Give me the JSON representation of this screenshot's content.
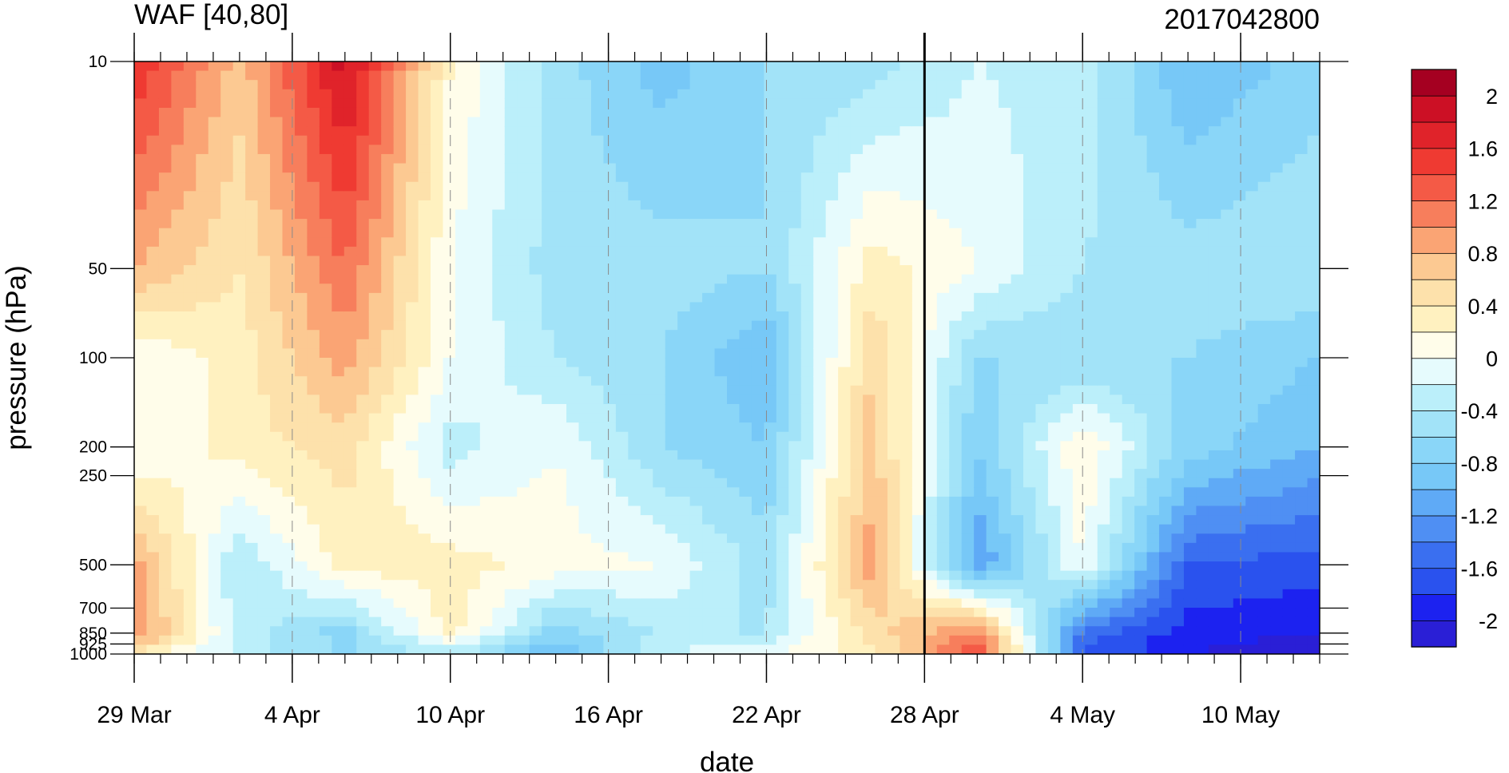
{
  "chart_data": {
    "type": "heatmap",
    "subtype": "filled-contour",
    "title": "WAF [40,80]",
    "title_right": "2017042800",
    "xlabel": "date",
    "ylabel": "pressure (hPa)",
    "y_scale": "log",
    "y_inverted": true,
    "ylim": [
      1000,
      10
    ],
    "y_ticks": [
      10,
      50,
      100,
      200,
      250,
      500,
      700,
      850,
      925,
      1000
    ],
    "y_tick_labels": [
      "10",
      "50",
      "100",
      "200",
      "250",
      "500",
      "700",
      "850",
      "925",
      "1000"
    ],
    "x_ticks": [
      "2017-03-29",
      "2017-04-04",
      "2017-04-10",
      "2017-04-16",
      "2017-04-22",
      "2017-04-28",
      "2017-05-04",
      "2017-05-10"
    ],
    "x_tick_labels": [
      "29 Mar",
      "4 Apr",
      "10 Apr",
      "16 Apr",
      "22 Apr",
      "28 Apr",
      "4 May",
      "10 May"
    ],
    "xlim": [
      "2017-03-29",
      "2017-05-13"
    ],
    "vertical_marker": "2017-04-28",
    "grid": "dashed vertical lines at date ticks",
    "colorbar": {
      "levels": [
        -2.2,
        -2.0,
        -1.8,
        -1.6,
        -1.4,
        -1.2,
        -1.0,
        -0.8,
        -0.6,
        -0.4,
        -0.2,
        0,
        0.2,
        0.4,
        0.6,
        0.8,
        1.0,
        1.2,
        1.4,
        1.6,
        1.8,
        2.0,
        2.2
      ],
      "labels": [
        "2",
        "1.6",
        "1.2",
        "0.8",
        "0.4",
        "0",
        "-0.4",
        "-0.8",
        "-1.2",
        "-1.6",
        "-2"
      ],
      "colors": [
        "#2a1fd6",
        "#1c22f0",
        "#2a52ee",
        "#3a6ff0",
        "#4f8ff3",
        "#5faaf6",
        "#77c8f7",
        "#8ad6f8",
        "#a2e3f8",
        "#bbeffa",
        "#e6fbfd",
        "#fffdea",
        "#fff1c0",
        "#fde1ab",
        "#fcc992",
        "#faa474",
        "#f77e5c",
        "#f45a46",
        "#ef3a32",
        "#e0232a",
        "#cc1025",
        "#a50021"
      ],
      "placement": "right"
    },
    "field": {
      "dates": [
        "2017-03-29",
        "2017-04-02",
        "2017-04-06",
        "2017-04-10",
        "2017-04-14",
        "2017-04-18",
        "2017-04-22",
        "2017-04-26",
        "2017-04-30",
        "2017-05-04",
        "2017-05-08",
        "2017-05-13"
      ],
      "pressures": [
        10,
        50,
        100,
        200,
        500,
        850,
        1000
      ],
      "values": [
        [
          1.6,
          0.7,
          1.9,
          0.2,
          -0.5,
          -0.9,
          -0.6,
          -0.5,
          -0.2,
          -0.3,
          -1.0,
          -0.7
        ],
        [
          0.8,
          0.4,
          1.2,
          0.0,
          -0.5,
          -0.5,
          -0.6,
          0.3,
          0.0,
          -0.4,
          -0.5,
          -0.4
        ],
        [
          0.0,
          0.3,
          0.9,
          0.0,
          -0.4,
          -0.6,
          -1.0,
          0.6,
          -0.6,
          -0.6,
          -0.6,
          -0.8
        ],
        [
          0.0,
          0.3,
          0.5,
          -0.3,
          0.0,
          -0.6,
          -0.8,
          0.7,
          -0.8,
          0.2,
          -0.7,
          -1.0
        ],
        [
          0.9,
          -0.4,
          0.3,
          0.3,
          0.1,
          0.0,
          -0.5,
          0.9,
          -1.2,
          0.0,
          -1.6,
          -1.7
        ],
        [
          1.0,
          -0.3,
          -0.7,
          0.3,
          -0.7,
          -0.4,
          -0.4,
          0.5,
          1.1,
          -1.5,
          -1.9,
          -2.0
        ],
        [
          0.4,
          -0.3,
          -0.6,
          -0.4,
          -1.0,
          -0.2,
          0.0,
          0.3,
          1.4,
          -1.6,
          -2.0,
          -2.2
        ]
      ]
    }
  }
}
